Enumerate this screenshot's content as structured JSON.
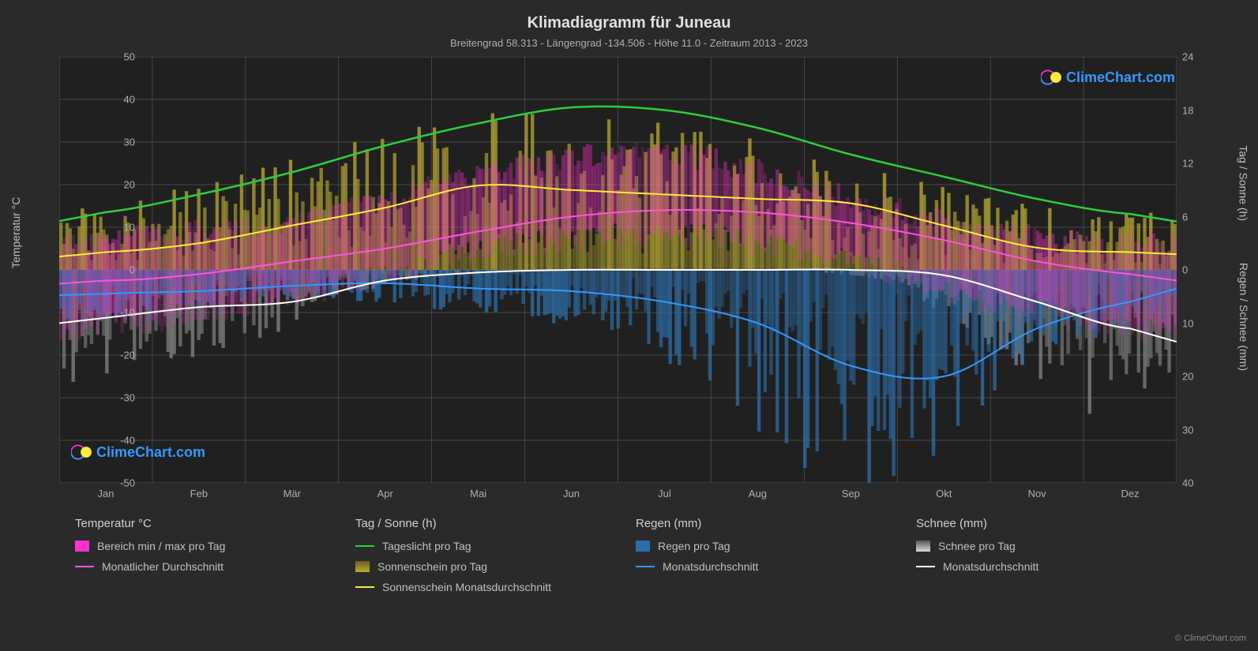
{
  "title": "Klimadiagramm für Juneau",
  "subtitle": "Breitengrad 58.313 - Längengrad -134.506 - Höhe 11.0 - Zeitraum 2013 - 2023",
  "branding": "ClimeChart.com",
  "branding_color": "#3399ff",
  "copyright": "© ClimeChart.com",
  "axes": {
    "left_label": "Temperatur °C",
    "right_label_top": "Tag / Sonne (h)",
    "right_label_bottom": "Regen / Schnee (mm)",
    "left_min": -50,
    "left_max": 50,
    "left_ticks": [
      -50,
      -40,
      -30,
      -20,
      -10,
      0,
      10,
      20,
      30,
      40,
      50
    ],
    "right_top_min": 0,
    "right_top_max": 24,
    "right_top_ticks": [
      0,
      6,
      12,
      18,
      24
    ],
    "right_bottom_min": 0,
    "right_bottom_max": 40,
    "right_bottom_ticks": [
      0,
      10,
      20,
      30,
      40
    ],
    "grid_color": "#555555",
    "background_color": "#202020"
  },
  "months": [
    "Jan",
    "Feb",
    "Mär",
    "Apr",
    "Mai",
    "Jun",
    "Jul",
    "Aug",
    "Sep",
    "Okt",
    "Nov",
    "Dez"
  ],
  "colors": {
    "daylight": "#2ecc40",
    "sunshine_line": "#ffeb3b",
    "sunshine_bars": "#b8a832",
    "temp_range": "#ff33cc",
    "temp_avg": "#ff55dd",
    "rain_line": "#3399ff",
    "rain_bars": "#2d6da8",
    "snow_line": "#ffffff",
    "snow_bars": "#888888"
  },
  "series": {
    "daylight_h": [
      6.5,
      8.5,
      11.0,
      14.0,
      16.5,
      18.3,
      18.0,
      16.0,
      13.0,
      10.5,
      8.0,
      6.3
    ],
    "sunshine_avg_h": [
      2.0,
      3.0,
      5.0,
      7.0,
      9.5,
      9.0,
      8.5,
      8.0,
      7.5,
      5.0,
      2.5,
      2.0
    ],
    "temp_avg_c": [
      -2.5,
      -1.0,
      2.0,
      5.0,
      9.0,
      12.5,
      14.0,
      13.5,
      11.0,
      7.0,
      2.0,
      -1.0
    ],
    "rain_avg_mm": [
      4.5,
      4.0,
      3.0,
      2.5,
      3.5,
      4.0,
      6.0,
      10.0,
      18.0,
      20.0,
      11.0,
      6.0
    ],
    "snow_avg_mm": [
      9.0,
      7.0,
      6.0,
      2.0,
      0.5,
      0.0,
      0.0,
      0.0,
      0.0,
      1.0,
      6.0,
      11.0
    ],
    "temp_min_c": [
      -14,
      -12,
      -8,
      -4,
      2,
      6,
      8,
      8,
      4,
      -1,
      -8,
      -12
    ],
    "temp_max_c": [
      6,
      8,
      10,
      14,
      20,
      25,
      28,
      26,
      20,
      14,
      9,
      6
    ]
  },
  "legend": {
    "temp_header": "Temperatur °C",
    "temp_range": "Bereich min / max pro Tag",
    "temp_avg": "Monatlicher Durchschnitt",
    "sun_header": "Tag / Sonne (h)",
    "daylight": "Tageslicht pro Tag",
    "sunshine_bars": "Sonnenschein pro Tag",
    "sunshine_avg": "Sonnenschein Monatsdurchschnitt",
    "rain_header": "Regen (mm)",
    "rain_bars": "Regen pro Tag",
    "rain_avg": "Monatsdurchschnitt",
    "snow_header": "Schnee (mm)",
    "snow_bars": "Schnee pro Tag",
    "snow_avg": "Monatsdurchschnitt"
  }
}
